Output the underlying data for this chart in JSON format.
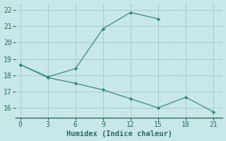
{
  "line1_x": [
    0,
    3,
    6,
    9,
    12,
    15
  ],
  "line1_y": [
    18.65,
    17.9,
    18.4,
    20.85,
    21.85,
    21.45
  ],
  "line2_x": [
    0,
    3,
    6,
    9,
    12,
    15,
    18,
    21
  ],
  "line2_y": [
    18.65,
    17.85,
    17.5,
    17.1,
    16.55,
    16.0,
    16.65,
    15.75
  ],
  "color": "#3a8a7a",
  "background_color": "#c8e8e8",
  "grid_color": "#a8cccc",
  "axis_color": "#2a6a6a",
  "xlabel": "Humidex (Indice chaleur)",
  "xlim": [
    -0.5,
    22
  ],
  "ylim": [
    15.4,
    22.4
  ],
  "xticks": [
    0,
    3,
    6,
    9,
    12,
    15,
    18,
    21
  ],
  "yticks": [
    16,
    17,
    18,
    19,
    20,
    21,
    22
  ],
  "xlabel_fontsize": 7.5,
  "tick_fontsize": 7
}
